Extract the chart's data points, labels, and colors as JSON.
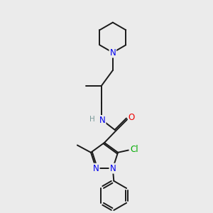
{
  "bg_color": "#ebebeb",
  "bond_color": "#1a1a1a",
  "N_color": "#0000ee",
  "O_color": "#ee0000",
  "Cl_color": "#00aa00",
  "H_color": "#7a9a9a",
  "figsize": [
    3.0,
    3.0
  ],
  "dpi": 100,
  "xlim": [
    0,
    10
  ],
  "ylim": [
    0,
    10
  ]
}
